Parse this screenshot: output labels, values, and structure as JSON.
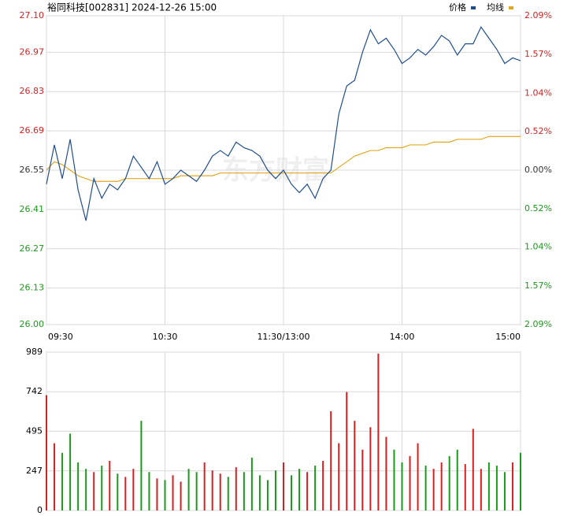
{
  "chart_data": [
    {
      "type": "line",
      "title": "裕同科技[002831] 2024-12-26 15:00",
      "watermark": "东方财富",
      "x": [
        0,
        4,
        8,
        12,
        16,
        20,
        24,
        28,
        32,
        36,
        40,
        44,
        48,
        52,
        56,
        60,
        64,
        68,
        72,
        76,
        80,
        84,
        88,
        92,
        96,
        100,
        104,
        108,
        112,
        116,
        120,
        124,
        128,
        132,
        136,
        140,
        144,
        148,
        152,
        156,
        160,
        164,
        168,
        172,
        176,
        180,
        184,
        188,
        192,
        196,
        200,
        204,
        208,
        212,
        216,
        220,
        224,
        228,
        232,
        236,
        240
      ],
      "xlim": [
        0,
        240
      ],
      "xticks": [
        {
          "value": 0,
          "label": "09:30"
        },
        {
          "value": 60,
          "label": "10:30"
        },
        {
          "value": 120,
          "label": "11:30/13:00"
        },
        {
          "value": 180,
          "label": "14:00"
        },
        {
          "value": 240,
          "label": "15:00"
        }
      ],
      "ylim": [
        26.0,
        27.1
      ],
      "yticks": [
        {
          "value": 27.1,
          "label": "27.10"
        },
        26.97,
        26.83,
        26.69,
        26.55,
        26.41,
        26.27,
        26.13,
        {
          "value": 26.0,
          "label": "26.00"
        }
      ],
      "y2lim": [
        -2.09,
        2.09
      ],
      "y2ticks": [
        {
          "value": 2.09,
          "label": "2.09%"
        },
        {
          "value": 1.57,
          "label": "1.57%"
        },
        {
          "value": 1.04,
          "label": "1.04%"
        },
        {
          "value": 0.52,
          "label": "0.52%"
        },
        {
          "value": 0,
          "label": "0.00%"
        },
        {
          "value": -0.52,
          "label": "0.52%"
        },
        {
          "value": -1.04,
          "label": "1.04%"
        },
        {
          "value": -1.57,
          "label": "1.57%"
        },
        {
          "value": -2.09,
          "label": "2.09%"
        }
      ],
      "grid": true,
      "series": [
        {
          "name": "价格",
          "color": "#1f4e8c",
          "values": [
            26.5,
            26.64,
            26.52,
            26.66,
            26.48,
            26.37,
            26.52,
            26.45,
            26.5,
            26.48,
            26.52,
            26.6,
            26.56,
            26.52,
            26.58,
            26.5,
            26.52,
            26.55,
            26.53,
            26.51,
            26.55,
            26.6,
            26.62,
            26.6,
            26.65,
            26.63,
            26.62,
            26.6,
            26.55,
            26.52,
            26.55,
            26.5,
            26.47,
            26.5,
            26.45,
            26.52,
            26.55,
            26.75,
            26.85,
            26.87,
            26.97,
            27.05,
            27.0,
            27.02,
            26.98,
            26.93,
            26.95,
            26.98,
            26.96,
            26.99,
            27.03,
            27.01,
            26.96,
            27.0,
            27.0,
            27.06,
            27.02,
            26.98,
            26.93,
            26.95,
            26.94
          ]
        },
        {
          "name": "均线",
          "color": "#e0a820",
          "values": [
            26.55,
            26.58,
            26.57,
            26.55,
            26.53,
            26.52,
            26.51,
            26.51,
            26.51,
            26.51,
            26.52,
            26.52,
            26.52,
            26.52,
            26.52,
            26.52,
            26.52,
            26.53,
            26.53,
            26.53,
            26.53,
            26.53,
            26.54,
            26.54,
            26.54,
            26.54,
            26.54,
            26.54,
            26.54,
            26.54,
            26.54,
            26.54,
            26.54,
            26.54,
            26.54,
            26.54,
            26.54,
            26.56,
            26.58,
            26.6,
            26.61,
            26.62,
            26.62,
            26.63,
            26.63,
            26.63,
            26.64,
            26.64,
            26.64,
            26.65,
            26.65,
            26.65,
            26.66,
            26.66,
            26.66,
            26.66,
            26.67,
            26.67,
            26.67,
            26.67,
            26.67
          ]
        }
      ]
    },
    {
      "type": "bar",
      "xlim": [
        0,
        240
      ],
      "x": [
        0,
        4,
        8,
        12,
        16,
        20,
        24,
        28,
        32,
        36,
        40,
        44,
        48,
        52,
        56,
        60,
        64,
        68,
        72,
        76,
        80,
        84,
        88,
        92,
        96,
        100,
        104,
        108,
        112,
        116,
        120,
        124,
        128,
        132,
        136,
        140,
        144,
        148,
        152,
        156,
        160,
        164,
        168,
        172,
        176,
        180,
        184,
        188,
        192,
        196,
        200,
        204,
        208,
        212,
        216,
        220,
        224,
        228,
        232,
        236,
        240
      ],
      "ylim": [
        0,
        989
      ],
      "yticks": [
        0,
        247,
        495,
        742,
        989
      ],
      "grid": true,
      "values": [
        720,
        420,
        360,
        480,
        300,
        260,
        240,
        280,
        310,
        230,
        210,
        260,
        560,
        240,
        200,
        190,
        220,
        180,
        260,
        240,
        300,
        250,
        230,
        210,
        270,
        240,
        330,
        220,
        190,
        250,
        300,
        220,
        260,
        240,
        280,
        310,
        620,
        420,
        740,
        560,
        380,
        520,
        980,
        460,
        380,
        300,
        340,
        420,
        280,
        260,
        300,
        340,
        380,
        290,
        510,
        260,
        300,
        280,
        240,
        300,
        360
      ],
      "colors": [
        "#d42020",
        "#d42020",
        "#1a9a1a",
        "#1a9a1a",
        "#1a9a1a",
        "#1a9a1a",
        "#d42020",
        "#1a9a1a",
        "#d42020",
        "#1a9a1a",
        "#d42020",
        "#d42020",
        "#1a9a1a",
        "#1a9a1a",
        "#d42020",
        "#1a9a1a",
        "#d42020",
        "#d42020",
        "#1a9a1a",
        "#1a9a1a",
        "#d42020",
        "#d42020",
        "#d42020",
        "#1a9a1a",
        "#d42020",
        "#1a9a1a",
        "#1a9a1a",
        "#1a9a1a",
        "#1a9a1a",
        "#1a9a1a",
        "#d42020",
        "#1a9a1a",
        "#1a9a1a",
        "#d42020",
        "#1a9a1a",
        "#d42020",
        "#d42020",
        "#d42020",
        "#d42020",
        "#d42020",
        "#d42020",
        "#d42020",
        "#d42020",
        "#d42020",
        "#1a9a1a",
        "#1a9a1a",
        "#d42020",
        "#d42020",
        "#1a9a1a",
        "#d42020",
        "#d42020",
        "#1a9a1a",
        "#1a9a1a",
        "#d42020",
        "#d42020",
        "#d42020",
        "#1a9a1a",
        "#1a9a1a",
        "#1a9a1a",
        "#d42020",
        "#1a9a1a"
      ]
    }
  ]
}
